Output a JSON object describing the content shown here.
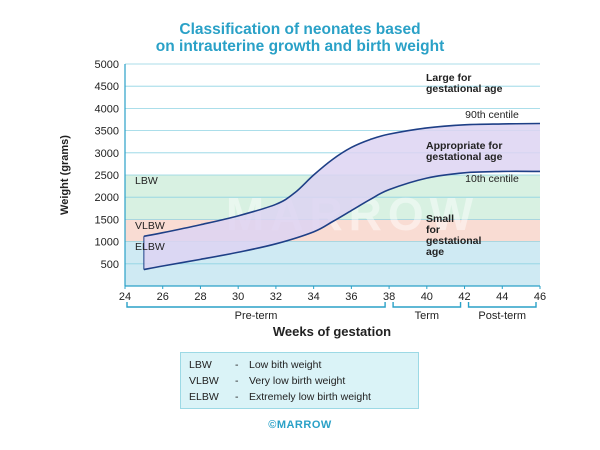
{
  "title_line1": "Classification of neonates based",
  "title_line2": "on intrauterine growth and birth weight",
  "watermark": "MARROW",
  "footer": "©MARROW",
  "colors": {
    "accent": "#2aa1c7",
    "band_lbw": "#d8f1e2",
    "band_vlbw": "#f9dcd3",
    "band_elbw": "#cfeaf3",
    "growth_fill": "#ddd4f2",
    "curve": "#1e3f86"
  },
  "chart_data": {
    "type": "line",
    "xlabel": "Weeks of gestation",
    "ylabel": "Weight (grams)",
    "xlim": [
      24,
      46
    ],
    "ylim": [
      0,
      5000
    ],
    "x_ticks": [
      24,
      26,
      28,
      30,
      32,
      34,
      36,
      38,
      40,
      42,
      44,
      46
    ],
    "y_ticks": [
      500,
      1000,
      1500,
      2000,
      2500,
      3000,
      3500,
      4000,
      4500,
      5000
    ],
    "series": [
      {
        "name": "90th centile",
        "x": [
          25,
          26,
          28,
          30,
          32,
          33,
          34,
          35,
          36,
          37,
          38,
          40,
          42,
          44,
          46
        ],
        "y": [
          1120,
          1200,
          1380,
          1580,
          1840,
          2100,
          2500,
          2850,
          3120,
          3300,
          3420,
          3560,
          3630,
          3650,
          3660
        ]
      },
      {
        "name": "10th centile",
        "x": [
          25,
          26,
          28,
          30,
          32,
          34,
          35,
          36,
          37,
          38,
          40,
          42,
          44,
          46
        ],
        "y": [
          370,
          450,
          600,
          760,
          950,
          1220,
          1450,
          1700,
          1950,
          2170,
          2430,
          2550,
          2580,
          2580
        ]
      }
    ],
    "weight_bands": [
      {
        "label": "LBW",
        "from": 1500,
        "to": 2500
      },
      {
        "label": "VLBW",
        "from": 1000,
        "to": 1500
      },
      {
        "label": "ELBW",
        "from": 0,
        "to": 1000
      }
    ],
    "region_labels": [
      {
        "lines": [
          "Large for",
          "gestational age"
        ]
      },
      {
        "lines": [
          "Appropriate for",
          "gestational age"
        ]
      },
      {
        "lines": [
          "Small",
          "for",
          "gestational",
          "age"
        ]
      }
    ],
    "term_brackets": [
      {
        "label": "Pre-term",
        "from": 24,
        "to": 38
      },
      {
        "label": "Term",
        "from": 38,
        "to": 42
      },
      {
        "label": "Post-term",
        "from": 42,
        "to": 46
      }
    ],
    "legend": [
      {
        "abbr": "LBW",
        "text": "Low bith weight"
      },
      {
        "abbr": "VLBW",
        "text": "Very low birth weight"
      },
      {
        "abbr": "ELBW",
        "text": "Extremely low birth weight"
      }
    ]
  }
}
